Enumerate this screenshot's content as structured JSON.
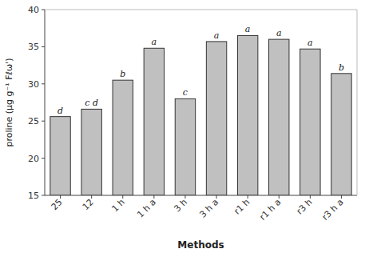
{
  "chart_data": {
    "type": "bar",
    "categories": [
      "25",
      "12",
      "1 h",
      "1 h a",
      "3 h",
      "3 h a",
      "r1 h",
      "r1 h a",
      "r3 h",
      "r3 h a"
    ],
    "values": [
      25.6,
      26.6,
      30.5,
      34.8,
      28.0,
      35.7,
      36.5,
      36.0,
      34.7,
      31.4
    ],
    "annotations": [
      "d",
      "c d",
      "b",
      "a",
      "c",
      "a",
      "a",
      "a",
      "a",
      "b"
    ],
    "color": "#C0C0C0",
    "xlabel": "Methods",
    "ylabel": "proline (μg g⁻¹ Fℓω')",
    "ylim": [
      15,
      40
    ],
    "yticks": [
      15,
      20,
      25,
      30,
      35,
      40
    ],
    "grid": false
  }
}
